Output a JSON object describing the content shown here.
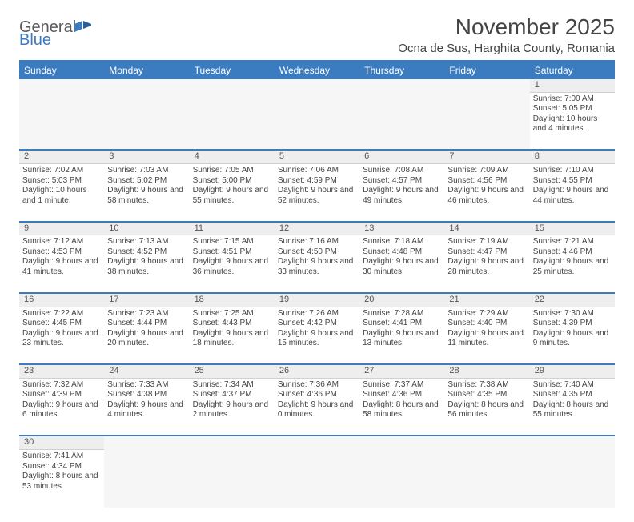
{
  "brand": {
    "name_gray": "General",
    "name_blue": "Blue"
  },
  "title": "November 2025",
  "location": "Ocna de Sus, Harghita County, Romania",
  "colors": {
    "header_bg": "#3b7bbf",
    "header_text": "#ffffff",
    "rule": "#3b7bbf",
    "daynum_bg": "#eeeeee",
    "text": "#444444"
  },
  "typography": {
    "title_fontsize": 28,
    "location_fontsize": 15,
    "dayheader_fontsize": 12,
    "cell_fontsize": 10
  },
  "day_headers": [
    "Sunday",
    "Monday",
    "Tuesday",
    "Wednesday",
    "Thursday",
    "Friday",
    "Saturday"
  ],
  "weeks": [
    {
      "nums": [
        "",
        "",
        "",
        "",
        "",
        "",
        "1"
      ],
      "cells": [
        null,
        null,
        null,
        null,
        null,
        null,
        {
          "sunrise": "Sunrise: 7:00 AM",
          "sunset": "Sunset: 5:05 PM",
          "daylight": "Daylight: 10 hours and 4 minutes."
        }
      ]
    },
    {
      "nums": [
        "2",
        "3",
        "4",
        "5",
        "6",
        "7",
        "8"
      ],
      "cells": [
        {
          "sunrise": "Sunrise: 7:02 AM",
          "sunset": "Sunset: 5:03 PM",
          "daylight": "Daylight: 10 hours and 1 minute."
        },
        {
          "sunrise": "Sunrise: 7:03 AM",
          "sunset": "Sunset: 5:02 PM",
          "daylight": "Daylight: 9 hours and 58 minutes."
        },
        {
          "sunrise": "Sunrise: 7:05 AM",
          "sunset": "Sunset: 5:00 PM",
          "daylight": "Daylight: 9 hours and 55 minutes."
        },
        {
          "sunrise": "Sunrise: 7:06 AM",
          "sunset": "Sunset: 4:59 PM",
          "daylight": "Daylight: 9 hours and 52 minutes."
        },
        {
          "sunrise": "Sunrise: 7:08 AM",
          "sunset": "Sunset: 4:57 PM",
          "daylight": "Daylight: 9 hours and 49 minutes."
        },
        {
          "sunrise": "Sunrise: 7:09 AM",
          "sunset": "Sunset: 4:56 PM",
          "daylight": "Daylight: 9 hours and 46 minutes."
        },
        {
          "sunrise": "Sunrise: 7:10 AM",
          "sunset": "Sunset: 4:55 PM",
          "daylight": "Daylight: 9 hours and 44 minutes."
        }
      ]
    },
    {
      "nums": [
        "9",
        "10",
        "11",
        "12",
        "13",
        "14",
        "15"
      ],
      "cells": [
        {
          "sunrise": "Sunrise: 7:12 AM",
          "sunset": "Sunset: 4:53 PM",
          "daylight": "Daylight: 9 hours and 41 minutes."
        },
        {
          "sunrise": "Sunrise: 7:13 AM",
          "sunset": "Sunset: 4:52 PM",
          "daylight": "Daylight: 9 hours and 38 minutes."
        },
        {
          "sunrise": "Sunrise: 7:15 AM",
          "sunset": "Sunset: 4:51 PM",
          "daylight": "Daylight: 9 hours and 36 minutes."
        },
        {
          "sunrise": "Sunrise: 7:16 AM",
          "sunset": "Sunset: 4:50 PM",
          "daylight": "Daylight: 9 hours and 33 minutes."
        },
        {
          "sunrise": "Sunrise: 7:18 AM",
          "sunset": "Sunset: 4:48 PM",
          "daylight": "Daylight: 9 hours and 30 minutes."
        },
        {
          "sunrise": "Sunrise: 7:19 AM",
          "sunset": "Sunset: 4:47 PM",
          "daylight": "Daylight: 9 hours and 28 minutes."
        },
        {
          "sunrise": "Sunrise: 7:21 AM",
          "sunset": "Sunset: 4:46 PM",
          "daylight": "Daylight: 9 hours and 25 minutes."
        }
      ]
    },
    {
      "nums": [
        "16",
        "17",
        "18",
        "19",
        "20",
        "21",
        "22"
      ],
      "cells": [
        {
          "sunrise": "Sunrise: 7:22 AM",
          "sunset": "Sunset: 4:45 PM",
          "daylight": "Daylight: 9 hours and 23 minutes."
        },
        {
          "sunrise": "Sunrise: 7:23 AM",
          "sunset": "Sunset: 4:44 PM",
          "daylight": "Daylight: 9 hours and 20 minutes."
        },
        {
          "sunrise": "Sunrise: 7:25 AM",
          "sunset": "Sunset: 4:43 PM",
          "daylight": "Daylight: 9 hours and 18 minutes."
        },
        {
          "sunrise": "Sunrise: 7:26 AM",
          "sunset": "Sunset: 4:42 PM",
          "daylight": "Daylight: 9 hours and 15 minutes."
        },
        {
          "sunrise": "Sunrise: 7:28 AM",
          "sunset": "Sunset: 4:41 PM",
          "daylight": "Daylight: 9 hours and 13 minutes."
        },
        {
          "sunrise": "Sunrise: 7:29 AM",
          "sunset": "Sunset: 4:40 PM",
          "daylight": "Daylight: 9 hours and 11 minutes."
        },
        {
          "sunrise": "Sunrise: 7:30 AM",
          "sunset": "Sunset: 4:39 PM",
          "daylight": "Daylight: 9 hours and 9 minutes."
        }
      ]
    },
    {
      "nums": [
        "23",
        "24",
        "25",
        "26",
        "27",
        "28",
        "29"
      ],
      "cells": [
        {
          "sunrise": "Sunrise: 7:32 AM",
          "sunset": "Sunset: 4:39 PM",
          "daylight": "Daylight: 9 hours and 6 minutes."
        },
        {
          "sunrise": "Sunrise: 7:33 AM",
          "sunset": "Sunset: 4:38 PM",
          "daylight": "Daylight: 9 hours and 4 minutes."
        },
        {
          "sunrise": "Sunrise: 7:34 AM",
          "sunset": "Sunset: 4:37 PM",
          "daylight": "Daylight: 9 hours and 2 minutes."
        },
        {
          "sunrise": "Sunrise: 7:36 AM",
          "sunset": "Sunset: 4:36 PM",
          "daylight": "Daylight: 9 hours and 0 minutes."
        },
        {
          "sunrise": "Sunrise: 7:37 AM",
          "sunset": "Sunset: 4:36 PM",
          "daylight": "Daylight: 8 hours and 58 minutes."
        },
        {
          "sunrise": "Sunrise: 7:38 AM",
          "sunset": "Sunset: 4:35 PM",
          "daylight": "Daylight: 8 hours and 56 minutes."
        },
        {
          "sunrise": "Sunrise: 7:40 AM",
          "sunset": "Sunset: 4:35 PM",
          "daylight": "Daylight: 8 hours and 55 minutes."
        }
      ]
    },
    {
      "nums": [
        "30",
        "",
        "",
        "",
        "",
        "",
        ""
      ],
      "cells": [
        {
          "sunrise": "Sunrise: 7:41 AM",
          "sunset": "Sunset: 4:34 PM",
          "daylight": "Daylight: 8 hours and 53 minutes."
        },
        null,
        null,
        null,
        null,
        null,
        null
      ]
    }
  ]
}
